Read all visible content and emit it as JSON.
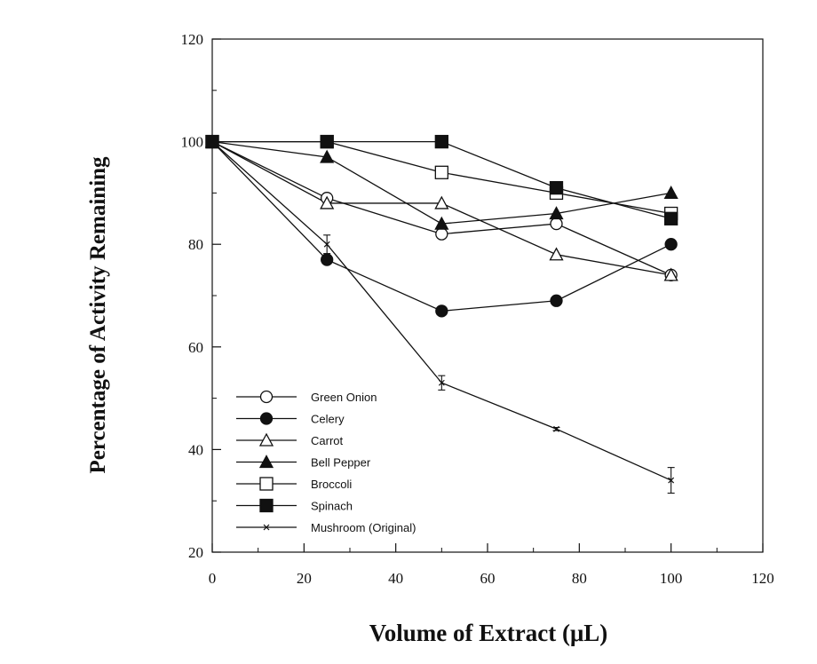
{
  "chart_data": {
    "type": "line",
    "title": "",
    "xlabel": "Volume of Extract (μL)",
    "ylabel": "Percentage of Activity Remaining",
    "xlim": [
      0,
      120
    ],
    "ylim": [
      20,
      120
    ],
    "xticks": [
      0,
      20,
      40,
      60,
      80,
      100,
      120
    ],
    "yticks": [
      20,
      40,
      60,
      80,
      100,
      120
    ],
    "grid": false,
    "legend_position": "bottom-left",
    "x": [
      0,
      25,
      50,
      75,
      100
    ],
    "series": [
      {
        "name": "Green Onion",
        "marker": "circle-open",
        "values": [
          100,
          89,
          82,
          84,
          74
        ]
      },
      {
        "name": "Celery",
        "marker": "circle-filled",
        "values": [
          100,
          77,
          67,
          69,
          80
        ]
      },
      {
        "name": "Carrot",
        "marker": "triangle-open",
        "values": [
          100,
          88,
          88,
          78,
          74
        ]
      },
      {
        "name": "Bell Pepper",
        "marker": "triangle-filled",
        "values": [
          100,
          97,
          84,
          86,
          90
        ]
      },
      {
        "name": "Broccoli",
        "marker": "square-open",
        "values": [
          100,
          100,
          94,
          90,
          86
        ]
      },
      {
        "name": "Spinach",
        "marker": "square-filled",
        "values": [
          100,
          100,
          100,
          91,
          85
        ]
      },
      {
        "name": "Mushroom (Original)",
        "marker": "x",
        "values": [
          100,
          80,
          53,
          44,
          34
        ],
        "errors": [
          0,
          1.8,
          1.4,
          0.3,
          2.5
        ]
      }
    ]
  }
}
